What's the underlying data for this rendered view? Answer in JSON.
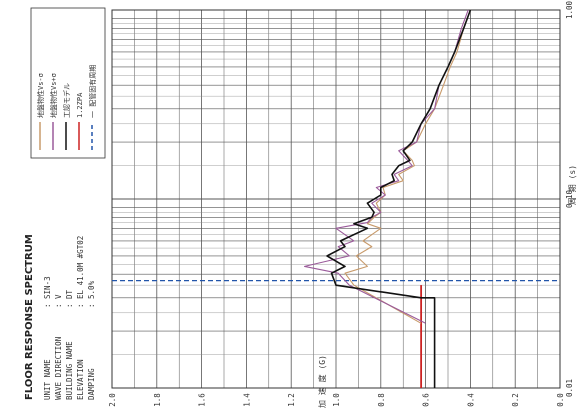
{
  "chart_data": {
    "type": "line",
    "title": "FLOOR RESPONSE SPECTRUM",
    "info": [
      {
        "label": "UNIT NAME",
        "value": ": SIN-3"
      },
      {
        "label": "WAVE DIRECTION",
        "value": ": V"
      },
      {
        "label": "BUILDING NAME",
        "value": ": DT"
      },
      {
        "label": "ELEVATION",
        "value": ": EL 41.0M  #GT02"
      },
      {
        "label": "DAMPING",
        "value": ": 5.0%"
      }
    ],
    "xlabel": "周 期 (s)",
    "ylabel": "加 速 度 (G)",
    "xscale": "log",
    "xlim": [
      0.01,
      1.0
    ],
    "ylim": [
      0.0,
      2.0
    ],
    "x_tick_labels": [
      "0.01",
      "0.10",
      "1.00"
    ],
    "y_ticks": [
      0.0,
      0.2,
      0.4,
      0.6,
      0.8,
      1.0,
      1.2,
      1.4,
      1.6,
      1.8,
      2.0
    ],
    "y_tick_labels": [
      "0.0",
      "0.2",
      "0.4",
      "0.6",
      "0.8",
      "1.0",
      "1.2",
      "1.4",
      "1.6",
      "1.8",
      "2.0"
    ],
    "legend_position": "top-left",
    "series": [
      {
        "name": "地盤物性Vs-σ",
        "color": "#c89a6a",
        "x": [
          0.022,
          0.035,
          0.0405,
          0.044,
          0.05,
          0.056,
          0.06,
          0.07,
          0.074,
          0.08,
          0.085,
          0.095,
          0.105,
          0.115,
          0.125,
          0.135,
          0.15,
          0.16,
          0.18,
          0.2,
          0.25,
          0.3,
          0.4,
          0.5,
          0.6,
          0.8,
          1.0
        ],
        "y": [
          0.62,
          0.92,
          0.96,
          0.86,
          0.91,
          0.84,
          0.88,
          0.8,
          0.86,
          0.83,
          0.8,
          0.82,
          0.78,
          0.79,
          0.7,
          0.72,
          0.65,
          0.66,
          0.7,
          0.64,
          0.6,
          0.56,
          0.52,
          0.49,
          0.46,
          0.43,
          0.4
        ]
      },
      {
        "name": "地盤物性Vs+σ",
        "color": "#9a5a9a",
        "x": [
          0.022,
          0.035,
          0.0405,
          0.044,
          0.05,
          0.056,
          0.06,
          0.07,
          0.075,
          0.08,
          0.085,
          0.095,
          0.105,
          0.115,
          0.125,
          0.135,
          0.15,
          0.16,
          0.18,
          0.2,
          0.25,
          0.3,
          0.4,
          0.5,
          0.6,
          0.8,
          1.0
        ],
        "y": [
          0.6,
          0.94,
          0.99,
          1.14,
          0.94,
          0.99,
          0.92,
          1.0,
          0.86,
          0.84,
          0.8,
          0.84,
          0.78,
          0.82,
          0.72,
          0.74,
          0.66,
          0.68,
          0.72,
          0.64,
          0.62,
          0.56,
          0.54,
          0.5,
          0.47,
          0.44,
          0.41
        ]
      },
      {
        "name": "工認モデル",
        "color": "#111111",
        "x": [
          0.01,
          0.03,
          0.03,
          0.035,
          0.0405,
          0.044,
          0.05,
          0.056,
          0.06,
          0.07,
          0.074,
          0.08,
          0.085,
          0.095,
          0.105,
          0.115,
          0.125,
          0.135,
          0.15,
          0.16,
          0.18,
          0.2,
          0.25,
          0.3,
          0.4,
          0.5,
          0.6,
          0.8,
          1.0
        ],
        "y": [
          0.56,
          0.56,
          0.62,
          1.0,
          1.02,
          0.96,
          1.04,
          0.96,
          0.98,
          0.86,
          0.92,
          0.84,
          0.83,
          0.86,
          0.8,
          0.8,
          0.74,
          0.75,
          0.72,
          0.67,
          0.7,
          0.66,
          0.62,
          0.58,
          0.54,
          0.5,
          0.47,
          0.43,
          0.4
        ]
      }
    ],
    "vlines": [
      {
        "name": "1.2ZPA",
        "color": "#cc2222",
        "y": 0.62,
        "x_range": [
          0.01,
          0.035
        ]
      }
    ],
    "hlines": [
      {
        "name": "一 配管固有周期",
        "color": "#2255aa",
        "x": 0.037
      }
    ]
  }
}
